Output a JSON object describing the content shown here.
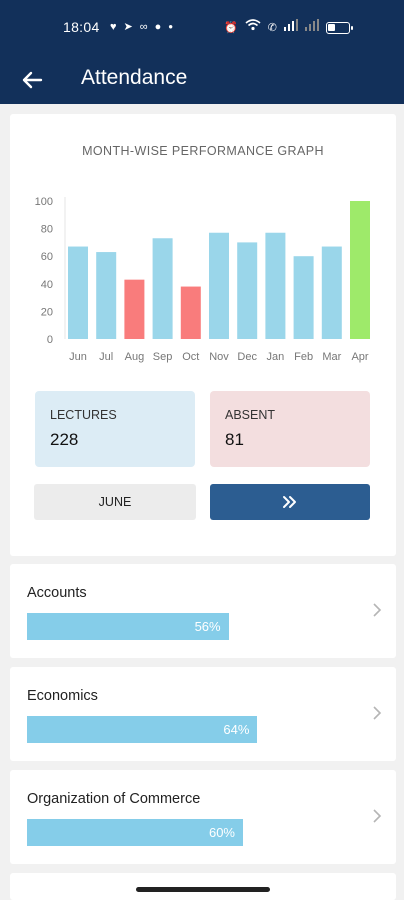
{
  "status_bar": {
    "time": "18:04",
    "left_icons": [
      "heart-icon",
      "telegram-icon",
      "link-icon",
      "messenger-icon",
      "dot-icon"
    ],
    "right_icons": [
      "alarm-icon",
      "wifi-icon",
      "wifi-calling-icon",
      "signal-icon",
      "signal-icon-2",
      "battery-icon"
    ]
  },
  "app_bar": {
    "title": "Attendance"
  },
  "graph": {
    "title": "MONTH-WISE PERFORMANCE GRAPH"
  },
  "chart_data": {
    "type": "bar",
    "title": "MONTH-WISE PERFORMANCE GRAPH",
    "xlabel": "",
    "ylabel": "",
    "ylim": [
      0,
      100
    ],
    "yticks": [
      0,
      20,
      40,
      60,
      80,
      100
    ],
    "categories": [
      "Jun",
      "Jul",
      "Aug",
      "Sep",
      "Oct",
      "Nov",
      "Dec",
      "Jan",
      "Feb",
      "Mar",
      "Apr"
    ],
    "values": [
      67,
      63,
      43,
      73,
      38,
      77,
      70,
      77,
      60,
      67,
      100
    ],
    "bar_colors": [
      "#9ad6ea",
      "#9ad6ea",
      "#f97c7c",
      "#9ad6ea",
      "#f97c7c",
      "#9ad6ea",
      "#9ad6ea",
      "#9ad6ea",
      "#9ad6ea",
      "#9ad6ea",
      "#9eea6a"
    ],
    "grid": false,
    "legend": "none"
  },
  "stats": {
    "lectures_label": "LECTURES",
    "lectures_value": "228",
    "absent_label": "ABSENT",
    "absent_value": "81"
  },
  "controls": {
    "month_label": "JUNE",
    "next_icon": "double-chevron-right-icon"
  },
  "subjects": [
    {
      "name": "Accounts",
      "percent_text": "56%",
      "percent": 56
    },
    {
      "name": "Economics",
      "percent_text": "64%",
      "percent": 64
    },
    {
      "name": "Organization of Commerce",
      "percent_text": "60%",
      "percent": 60
    }
  ],
  "colors": {
    "header": "#12305a",
    "progress": "#85cde9",
    "next_button": "#2c5d91"
  }
}
